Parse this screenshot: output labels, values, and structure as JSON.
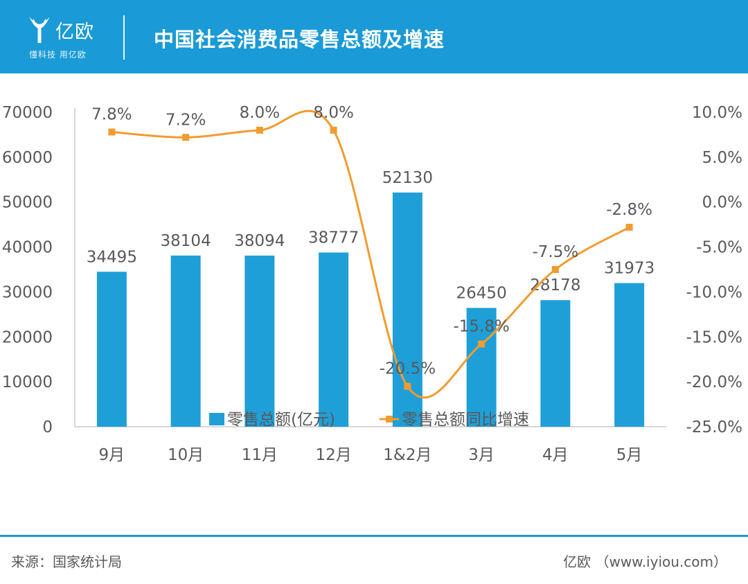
{
  "header": {
    "logo_text": "亿欧",
    "logo_tagline": "懂科技 用亿欧",
    "title": "中国社会消费品零售总额及增速"
  },
  "colors": {
    "brand": "#1a9ad6",
    "bar": "#1f9fd8",
    "line": "#f29b2e",
    "axis": "#bfbfbf",
    "text": "#595959"
  },
  "chart_data": {
    "type": "bar",
    "title": "",
    "categories": [
      "9月",
      "10月",
      "11月",
      "12月",
      "1&2月",
      "3月",
      "4月",
      "5月"
    ],
    "series": [
      {
        "name": "零售总额(亿元)",
        "type": "bar",
        "axis": "left",
        "values": [
          34495,
          38104,
          38094,
          38777,
          52130,
          26450,
          28178,
          31973
        ],
        "labels": [
          "34495",
          "38104",
          "38094",
          "38777",
          "52130",
          "26450",
          "28178",
          "31973"
        ]
      },
      {
        "name": "零售总额同比增速",
        "type": "line",
        "axis": "right",
        "values": [
          7.8,
          7.2,
          8.0,
          8.0,
          -20.5,
          -15.8,
          -7.5,
          -2.8
        ],
        "labels": [
          "7.8%",
          "7.2%",
          "8.0%",
          "8.0%",
          "-20.5%",
          "-15.8%",
          "-7.5%",
          "-2.8%"
        ]
      }
    ],
    "legend": {
      "position": "bottom",
      "entries": [
        "零售总额(亿元)",
        "零售总额同比增速"
      ]
    },
    "ylim_left": [
      0,
      70000
    ],
    "ylim_right": [
      -25,
      10
    ],
    "yticks_left": [
      "70000",
      "60000",
      "50000",
      "40000",
      "30000",
      "20000",
      "10000",
      "0"
    ],
    "yticks_right": [
      "10.0%",
      "5.0%",
      "0.0%",
      "-5.0%",
      "-10.0%",
      "-15.0%",
      "-20.0%",
      "-25.0%"
    ],
    "grid": false
  },
  "footer": {
    "source": "来源：国家统计局",
    "credit": "亿欧 （www.iyiou.com）"
  }
}
